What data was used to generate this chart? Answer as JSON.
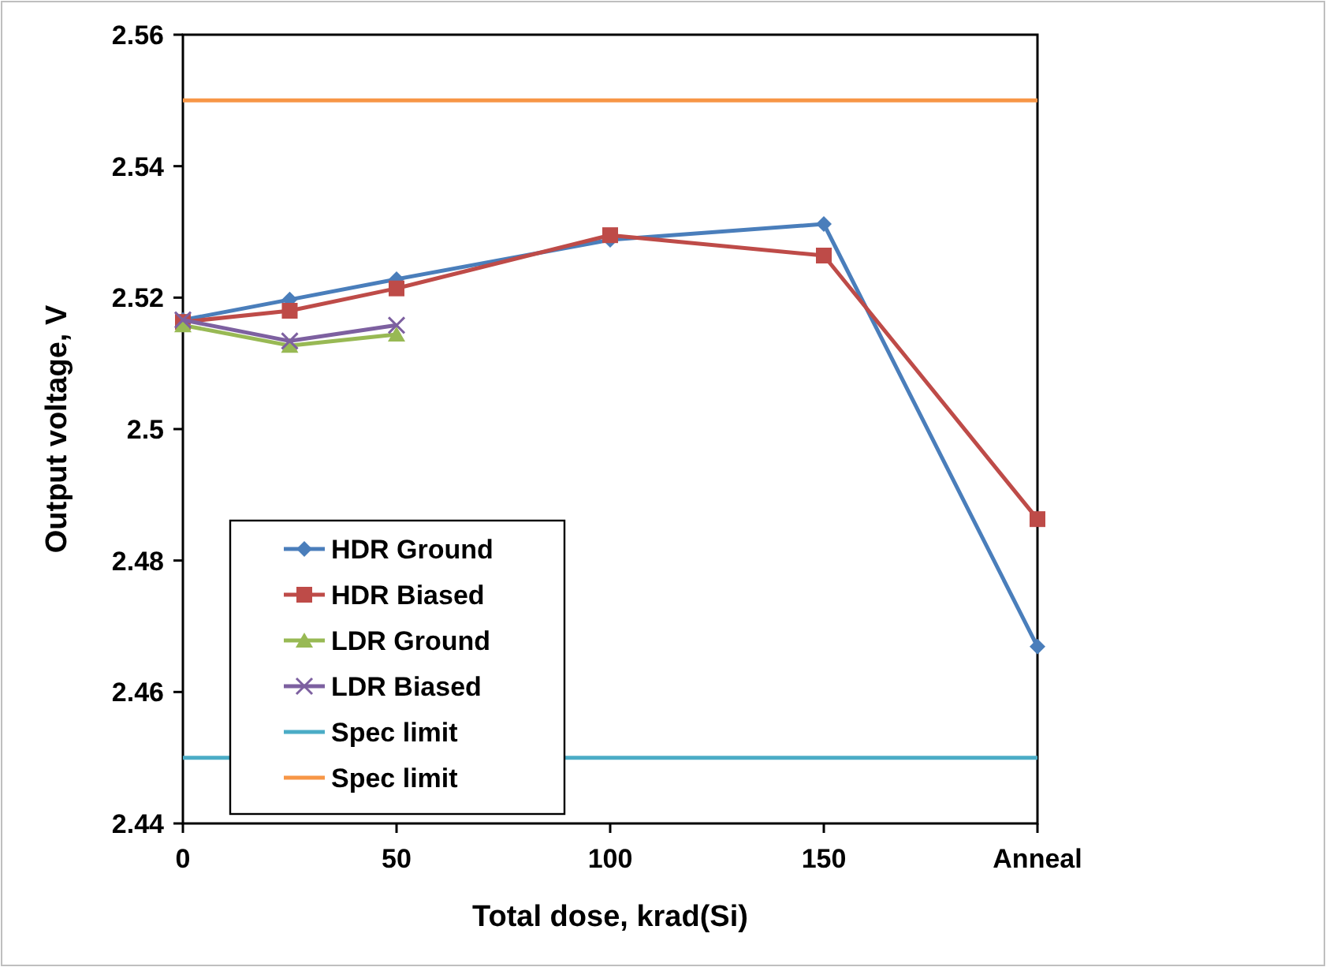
{
  "chart_data": {
    "type": "line",
    "xlabel": "Total dose, krad(Si)",
    "ylabel": "Output voltage, V",
    "xlim": [
      0,
      200
    ],
    "ylim": [
      2.44,
      2.56
    ],
    "xticks": [
      0,
      50,
      100,
      150,
      {
        "value": 200,
        "label": "Anneal"
      }
    ],
    "yticks": [
      {
        "value": 2.44,
        "label": "2.44"
      },
      {
        "value": 2.46,
        "label": "2.46"
      },
      {
        "value": 2.48,
        "label": "2.48"
      },
      {
        "value": 2.5,
        "label": "2.5"
      },
      {
        "value": 2.52,
        "label": "2.52"
      },
      {
        "value": 2.54,
        "label": "2.54"
      },
      {
        "value": 2.56,
        "label": "2.56"
      }
    ],
    "grid": false,
    "legend": "bottom left",
    "series": [
      {
        "name": "HDR Ground",
        "color": "#4a7ebb",
        "marker": "diamond",
        "x": [
          0,
          25,
          50,
          100,
          150,
          200
        ],
        "values": [
          2.5166,
          2.5197,
          2.5228,
          2.5288,
          2.5312,
          2.4669
        ]
      },
      {
        "name": "HDR Biased",
        "color": "#be4b48",
        "marker": "square",
        "x": [
          0,
          25,
          50,
          100,
          150,
          200
        ],
        "values": [
          2.5163,
          2.518,
          2.5214,
          2.5295,
          2.5264,
          2.4863
        ]
      },
      {
        "name": "LDR Ground",
        "color": "#98b954",
        "marker": "triangle",
        "x": [
          0,
          25,
          50
        ],
        "values": [
          2.5158,
          2.5127,
          2.5144
        ]
      },
      {
        "name": "LDR Biased",
        "color": "#7d60a0",
        "marker": "cross",
        "x": [
          0,
          25,
          50
        ],
        "values": [
          2.5166,
          2.5134,
          2.5158
        ]
      },
      {
        "name": "Spec limit",
        "color": "#4bacc6",
        "marker": "none",
        "x": [
          0,
          200
        ],
        "values": [
          2.45,
          2.45
        ]
      },
      {
        "name": "Spec limit",
        "color": "#f79646",
        "marker": "none",
        "x": [
          0,
          200
        ],
        "values": [
          2.55,
          2.55
        ]
      }
    ]
  }
}
